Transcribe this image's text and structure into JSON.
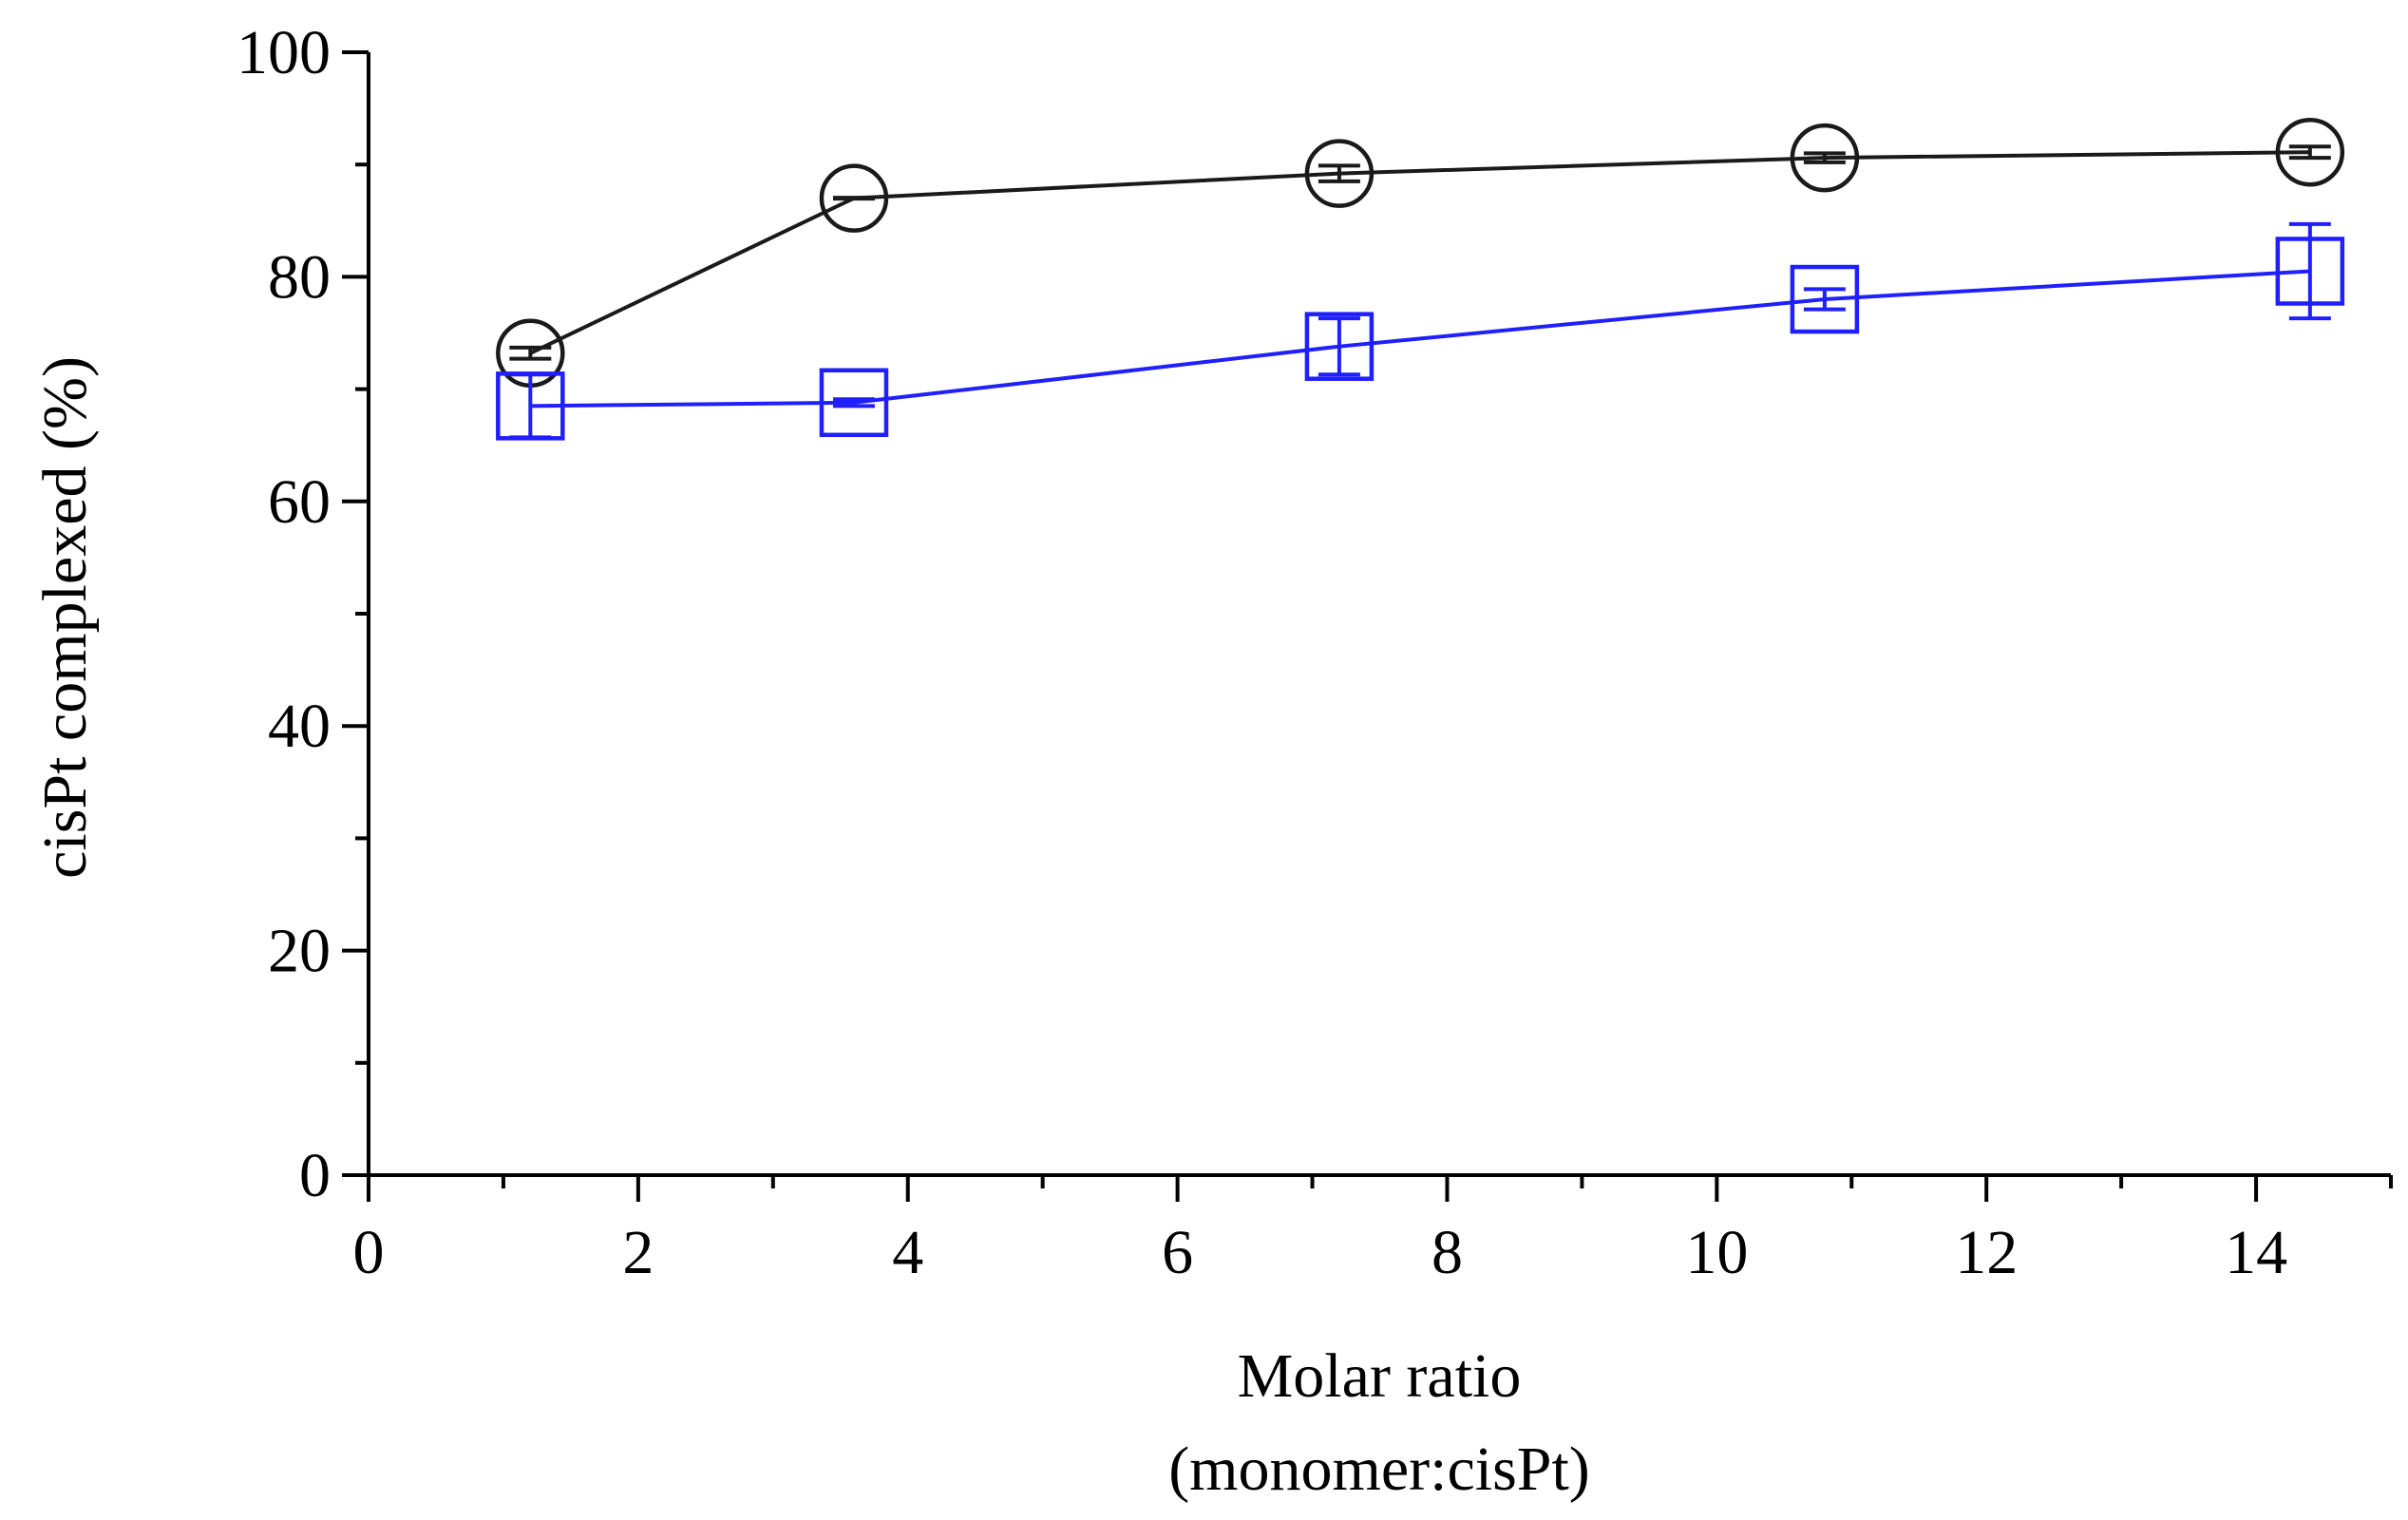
{
  "chart_data": {
    "type": "line",
    "title": "",
    "xlabel_line1": "Molar ratio",
    "xlabel_line2": "(monomer:cisPt)",
    "ylabel": "cisPt complexed (%)",
    "xlim": [
      0,
      15
    ],
    "ylim": [
      0,
      100
    ],
    "x_ticks": [
      0,
      2,
      4,
      6,
      8,
      10,
      12,
      14
    ],
    "x_tick_labels": [
      "0",
      "2",
      "4",
      "6",
      "8",
      "10",
      "12",
      "14"
    ],
    "x_minor_ticks": [
      1,
      3,
      5,
      7,
      9,
      11,
      13,
      15
    ],
    "y_ticks": [
      0,
      20,
      40,
      60,
      80,
      100
    ],
    "y_tick_labels": [
      "0",
      "20",
      "40",
      "60",
      "80",
      "100"
    ],
    "y_minor_ticks": [
      10,
      30,
      50,
      70,
      90
    ],
    "grid": false,
    "legend": "none",
    "series": [
      {
        "name": "circle series",
        "color": "#1a1a1a",
        "marker": "circle",
        "x": [
          1.2,
          3.6,
          7.2,
          10.8,
          14.4
        ],
        "y": [
          73.2,
          87.0,
          89.2,
          90.6,
          91.1
        ],
        "err": [
          0.5,
          0.0,
          0.7,
          0.4,
          0.5
        ]
      },
      {
        "name": "square series",
        "color": "#1f1fff",
        "marker": "square",
        "x": [
          1.2,
          3.6,
          7.2,
          10.8,
          14.4
        ],
        "y": [
          68.5,
          68.8,
          73.8,
          78.0,
          80.5
        ],
        "err": [
          2.8,
          0.3,
          2.5,
          0.9,
          4.2
        ]
      }
    ]
  }
}
